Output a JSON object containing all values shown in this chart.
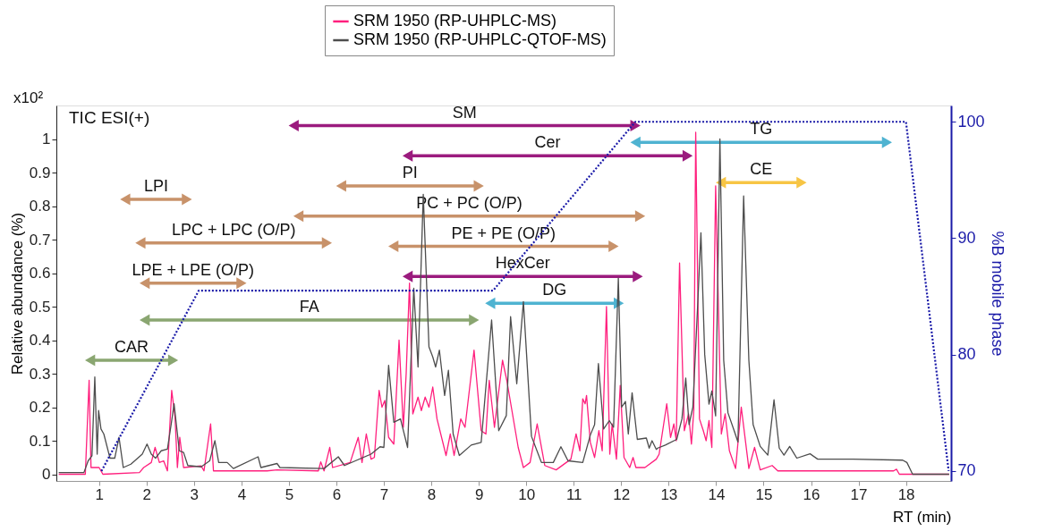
{
  "chart_data": {
    "type": "line",
    "xlabel": "RT (min)",
    "ylabel": "Relative abundance (%)",
    "y2label": "%B mobile phase",
    "xlim": [
      0.1,
      18.95
    ],
    "ylim": [
      -0.02,
      1.1
    ],
    "y2lim": [
      69.15,
      101.4
    ],
    "xticks": [
      1,
      2,
      3,
      4,
      5,
      6,
      7,
      8,
      9,
      10,
      11,
      12,
      13,
      14,
      15,
      16,
      17,
      18
    ],
    "yticks": [
      0,
      0.1,
      0.2,
      0.3,
      0.4,
      0.5,
      0.6,
      0.7,
      0.8,
      0.9,
      1
    ],
    "y2ticks": [
      70,
      80,
      90,
      100
    ],
    "legend": "top",
    "grid": false,
    "marker": "none",
    "annotations": [
      "x10²",
      "TIC ESI(+)"
    ],
    "series": [
      {
        "name": "SM",
        "color": "#9b1b7e",
        "marker": "triangle",
        "x": [
          5.1,
          12.3
        ],
        "values": [
          1.04,
          1.04
        ]
      },
      {
        "name": "TG",
        "color": "#4fb3d1",
        "marker": "triangle",
        "x": [
          12.3,
          17.6
        ],
        "values": [
          0.99,
          0.99
        ]
      },
      {
        "name": "Cer",
        "color": "#9b1b7e",
        "marker": "triangle",
        "x": [
          7.5,
          13.4
        ],
        "values": [
          0.95,
          0.95
        ]
      },
      {
        "name": "CE",
        "color": "#f7c544",
        "marker": "triangle",
        "x": [
          14.1,
          15.8
        ],
        "values": [
          0.87,
          0.87
        ]
      },
      {
        "name": "PI",
        "color": "#c8926a",
        "marker": "triangle",
        "x": [
          6.1,
          9.0
        ],
        "values": [
          0.86,
          0.86
        ]
      },
      {
        "name": "LPI",
        "color": "#c8926a",
        "marker": "triangle",
        "x": [
          1.55,
          2.85
        ],
        "values": [
          0.82,
          0.82
        ]
      },
      {
        "name": "PC + PC (O/P)",
        "color": "#c8926a",
        "marker": "triangle",
        "x": [
          5.2,
          12.4
        ],
        "values": [
          0.77,
          0.77
        ]
      },
      {
        "name": "LPC + LPC (O/P)",
        "color": "#c8926a",
        "marker": "triangle",
        "x": [
          1.87,
          5.8
        ],
        "values": [
          0.69,
          0.69
        ]
      },
      {
        "name": "PE + PE (O/P)",
        "color": "#c8926a",
        "marker": "triangle",
        "x": [
          7.2,
          11.84
        ],
        "values": [
          0.68,
          0.68
        ]
      },
      {
        "name": "HexCer",
        "color": "#9b1b7e",
        "marker": "triangle",
        "x": [
          7.5,
          12.35
        ],
        "values": [
          0.59,
          0.59
        ]
      },
      {
        "name": "LPE + LPE (O/P)",
        "color": "#c8926a",
        "marker": "triangle",
        "x": [
          1.96,
          4.0
        ],
        "values": [
          0.57,
          0.57
        ]
      },
      {
        "name": "DG",
        "color": "#4fb3d1",
        "marker": "triangle",
        "x": [
          9.24,
          11.95
        ],
        "values": [
          0.51,
          0.51
        ]
      },
      {
        "name": "FA",
        "color": "#8aa671",
        "marker": "triangle",
        "x": [
          1.96,
          8.9
        ],
        "values": [
          0.46,
          0.46
        ]
      },
      {
        "name": "CAR",
        "color": "#8aa671",
        "marker": "triangle",
        "x": [
          0.81,
          2.56
        ],
        "values": [
          0.34,
          0.34
        ]
      },
      {
        "name": "SRM 1950 (RP-UHPLC-MS)",
        "color": "#ff1f7d",
        "x": [
          0.15,
          0.71,
          0.79,
          0.83,
          1.0,
          1.08,
          1.85,
          1.94,
          2.1,
          2.18,
          2.27,
          2.36,
          2.44,
          2.53,
          2.6,
          2.65,
          2.7,
          2.78,
          3.15,
          3.21,
          3.35,
          3.41,
          4.54,
          4.75,
          5.62,
          5.67,
          5.74,
          5.86,
          5.92,
          6.29,
          6.46,
          6.54,
          6.63,
          6.73,
          6.8,
          6.9,
          6.96,
          7.02,
          7.1,
          7.21,
          7.32,
          7.41,
          7.47,
          7.54,
          7.61,
          7.72,
          7.79,
          7.87,
          7.95,
          8.03,
          8.12,
          8.31,
          8.4,
          8.48,
          8.62,
          8.71,
          8.9,
          9.05,
          9.15,
          9.22,
          9.33,
          9.5,
          9.59,
          9.83,
          9.94,
          10.08,
          10.23,
          10.39,
          10.63,
          10.94,
          11.05,
          11.13,
          11.19,
          11.24,
          11.27,
          11.35,
          11.44,
          11.53,
          11.6,
          11.69,
          11.76,
          11.81,
          11.9,
          11.98,
          12.06,
          12.18,
          12.25,
          12.31,
          12.5,
          12.74,
          12.8,
          12.96,
          13.04,
          13.11,
          13.16,
          13.23,
          13.33,
          13.42,
          13.48,
          13.53,
          13.57,
          13.65,
          13.73,
          13.79,
          13.85,
          13.91,
          13.99,
          14.11,
          14.19,
          14.28,
          14.41,
          14.53,
          14.69,
          14.81,
          14.93,
          15.18,
          15.3,
          15.64,
          17.74,
          17.8,
          17.86,
          18.91
        ],
        "values": [
          0.0,
          0.0,
          0.28,
          0.02,
          0.02,
          0.0,
          0.005,
          0.02,
          0.035,
          0.08,
          0.035,
          0.04,
          0.01,
          0.25,
          0.17,
          0.02,
          0.11,
          0.02,
          0.025,
          0.01,
          0.15,
          0.01,
          0.01,
          0.013,
          0.01,
          0.037,
          0.01,
          0.08,
          0.02,
          0.035,
          0.11,
          0.035,
          0.12,
          0.045,
          0.05,
          0.25,
          0.2,
          0.22,
          0.11,
          0.09,
          0.4,
          0.14,
          0.3,
          0.57,
          0.18,
          0.23,
          0.19,
          0.23,
          0.2,
          0.26,
          0.165,
          0.056,
          0.12,
          0.056,
          0.165,
          0.14,
          0.37,
          0.13,
          0.12,
          0.28,
          0.14,
          0.34,
          0.28,
          0.08,
          0.02,
          0.035,
          0.15,
          0.026,
          0.013,
          0.045,
          0.12,
          0.07,
          0.225,
          0.21,
          0.235,
          0.095,
          0.05,
          0.13,
          0.07,
          0.5,
          0.06,
          0.15,
          0.045,
          0.265,
          0.05,
          0.02,
          0.05,
          0.02,
          0.02,
          0.045,
          0.06,
          0.21,
          0.11,
          0.15,
          0.1,
          0.63,
          0.13,
          0.18,
          0.09,
          0.19,
          1.02,
          0.165,
          0.13,
          0.1,
          0.16,
          0.08,
          0.86,
          0.12,
          0.18,
          0.07,
          0.017,
          0.2,
          0.017,
          0.08,
          0.013,
          0.026,
          0.01,
          0.01,
          0.01,
          0.015,
          0.0,
          0.0
        ]
      },
      {
        "name": "SRM 1950 (RP-UHPLC-QTOF-MS)",
        "color": "#4d4d4d",
        "x": [
          0.15,
          0.68,
          0.77,
          0.85,
          0.91,
          0.96,
          0.99,
          1.04,
          1.1,
          1.23,
          1.33,
          1.42,
          1.51,
          1.67,
          1.91,
          2.01,
          2.1,
          2.19,
          2.31,
          2.44,
          2.52,
          2.58,
          2.69,
          2.78,
          2.87,
          3.15,
          3.33,
          3.44,
          3.52,
          3.7,
          3.83,
          4.35,
          4.41,
          4.75,
          4.81,
          5.74,
          6.04,
          6.17,
          6.73,
          6.92,
          7.0,
          7.1,
          7.21,
          7.35,
          7.5,
          7.63,
          7.72,
          7.83,
          7.95,
          8.03,
          8.09,
          8.17,
          8.28,
          8.36,
          8.46,
          8.59,
          8.84,
          9.05,
          9.27,
          9.42,
          9.58,
          9.67,
          9.8,
          9.94,
          10.11,
          10.32,
          10.57,
          10.73,
          10.88,
          11.19,
          11.35,
          11.44,
          11.52,
          11.63,
          11.75,
          11.84,
          11.94,
          12.01,
          12.09,
          12.15,
          12.23,
          12.34,
          12.53,
          12.59,
          12.65,
          12.74,
          12.77,
          12.93,
          13.17,
          13.28,
          13.36,
          13.43,
          13.51,
          13.62,
          13.68,
          13.76,
          13.85,
          13.91,
          13.99,
          14.08,
          14.16,
          14.25,
          14.38,
          14.46,
          14.58,
          14.69,
          14.78,
          14.93,
          15.09,
          15.22,
          15.33,
          15.43,
          15.55,
          15.7,
          15.98,
          16.14,
          16.88,
          17.93,
          18.02,
          18.14,
          18.91
        ],
        "values": [
          0.005,
          0.005,
          0.04,
          0.055,
          0.29,
          0.06,
          0.19,
          0.135,
          0.12,
          0.048,
          0.048,
          0.11,
          0.02,
          0.03,
          0.06,
          0.09,
          0.06,
          0.048,
          0.07,
          0.075,
          0.15,
          0.21,
          0.07,
          0.065,
          0.026,
          0.022,
          0.04,
          0.1,
          0.035,
          0.035,
          0.017,
          0.052,
          0.02,
          0.032,
          0.02,
          0.017,
          0.052,
          0.026,
          0.06,
          0.082,
          0.08,
          0.325,
          0.155,
          0.165,
          0.08,
          0.555,
          0.32,
          0.835,
          0.38,
          0.35,
          0.32,
          0.37,
          0.235,
          0.31,
          0.12,
          0.056,
          0.087,
          0.095,
          0.46,
          0.13,
          0.175,
          0.47,
          0.27,
          0.515,
          0.113,
          0.035,
          0.035,
          0.082,
          0.04,
          0.035,
          0.117,
          0.148,
          0.33,
          0.135,
          0.16,
          0.14,
          0.585,
          0.2,
          0.217,
          0.12,
          0.243,
          0.104,
          0.108,
          0.078,
          0.1,
          0.074,
          0.078,
          0.087,
          0.104,
          0.165,
          0.287,
          0.148,
          0.2,
          0.53,
          0.72,
          0.357,
          0.209,
          0.248,
          0.174,
          1.0,
          0.34,
          0.183,
          0.13,
          0.096,
          0.83,
          0.34,
          0.148,
          0.083,
          0.057,
          0.222,
          0.078,
          0.057,
          0.083,
          0.048,
          0.061,
          0.045,
          0.045,
          0.042,
          0.035,
          0.0,
          0.0
        ]
      },
      {
        "color": "#1a1aa8",
        "axis": "y2",
        "line_style": "dotted",
        "x": [
          1.05,
          3.1,
          9.3,
          12.3,
          18.0,
          18.9
        ],
        "values": [
          70,
          85.5,
          85.5,
          100,
          100,
          70
        ]
      }
    ]
  }
}
